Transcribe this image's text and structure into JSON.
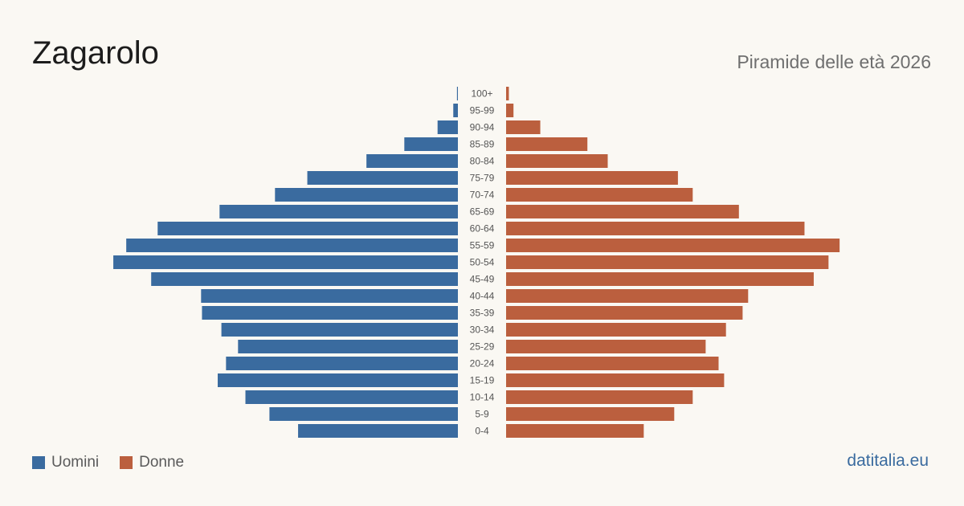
{
  "header": {
    "title": "Zagarolo",
    "subtitle": "Piramide delle età 2026"
  },
  "legend": {
    "male_label": "Uomini",
    "female_label": "Donne"
  },
  "brand": "datitalia.eu",
  "colors": {
    "male": "#3a6b9f",
    "female": "#bb5f3e",
    "label": "#555555",
    "background": "#faf8f3"
  },
  "chart_data": {
    "type": "bar",
    "orientation": "horizontal",
    "title": "Zagarolo",
    "subtitle": "Piramide delle età 2026",
    "categories": [
      "100+",
      "95-99",
      "90-94",
      "85-89",
      "80-84",
      "75-79",
      "70-74",
      "65-69",
      "60-64",
      "55-59",
      "50-54",
      "45-49",
      "40-44",
      "35-39",
      "30-34",
      "25-29",
      "20-24",
      "15-19",
      "10-14",
      "5-9",
      "0-4"
    ],
    "series": [
      {
        "name": "Uomini",
        "values": [
          1,
          5,
          22,
          58,
          99,
          163,
          198,
          258,
          325,
          359,
          373,
          332,
          278,
          277,
          256,
          238,
          251,
          260,
          230,
          204,
          173
        ]
      },
      {
        "name": "Donne",
        "values": [
          3,
          8,
          37,
          88,
          110,
          186,
          202,
          252,
          323,
          361,
          349,
          333,
          262,
          256,
          238,
          216,
          230,
          236,
          202,
          182,
          149
        ]
      }
    ],
    "legend_position": "bottom-left",
    "grid": false
  }
}
